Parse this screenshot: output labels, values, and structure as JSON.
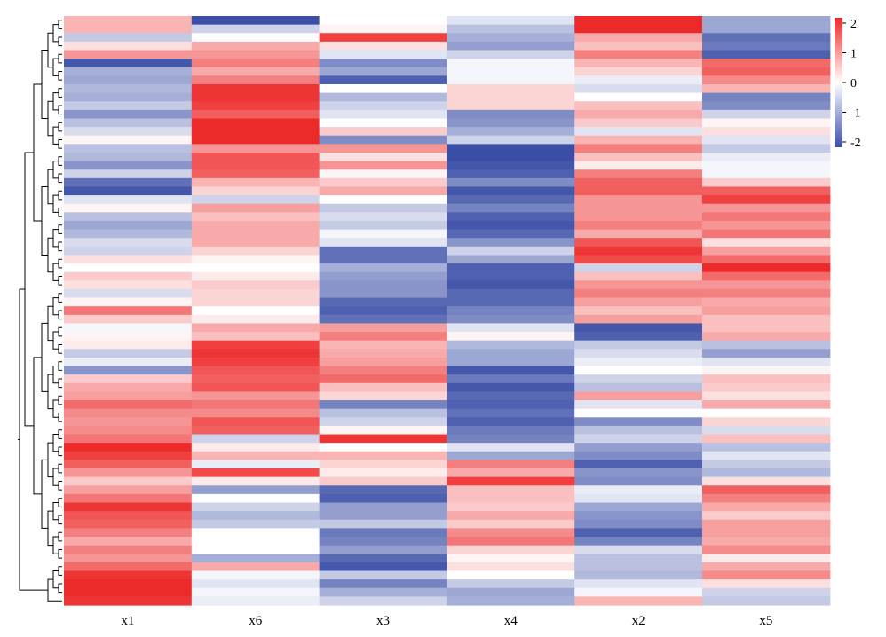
{
  "chart_data": {
    "type": "heatmap",
    "columns": [
      "x1",
      "x6",
      "x3",
      "x4",
      "x2",
      "x5"
    ],
    "legend": {
      "min": -2,
      "max": 2,
      "ticks": [
        "2",
        "1",
        "0",
        "-1",
        "-2"
      ],
      "colors": {
        "low": "#3a4ea6",
        "mid": "#ffffff",
        "high": "#ed2a2a"
      }
    },
    "dendrogram": "hierarchical clustering of rows shown on left",
    "rows": [
      [
        0.7,
        -2.0,
        0.0,
        -0.3,
        2.0,
        -1.0
      ],
      [
        0.7,
        -0.5,
        0.1,
        -0.7,
        2.0,
        -1.0
      ],
      [
        -0.6,
        0.0,
        1.8,
        -0.9,
        0.8,
        -1.6
      ],
      [
        0.3,
        0.8,
        0.3,
        -1.1,
        0.6,
        -1.5
      ],
      [
        1.0,
        1.0,
        -0.3,
        -0.5,
        1.2,
        -1.8
      ],
      [
        -1.9,
        1.2,
        -1.3,
        -0.1,
        0.7,
        1.4
      ],
      [
        -0.9,
        0.8,
        -1.0,
        -0.1,
        0.4,
        1.5
      ],
      [
        -1.0,
        1.2,
        -1.8,
        -0.1,
        -0.2,
        1.1
      ],
      [
        -0.8,
        1.9,
        0.0,
        0.4,
        -0.4,
        0.7
      ],
      [
        -0.9,
        1.9,
        -0.8,
        0.4,
        0.0,
        -1.4
      ],
      [
        -0.6,
        1.8,
        -0.5,
        0.4,
        0.6,
        -1.3
      ],
      [
        -1.2,
        1.5,
        -0.3,
        -1.3,
        0.8,
        -0.5
      ],
      [
        -0.7,
        2.0,
        0.0,
        -1.2,
        0.5,
        0.1
      ],
      [
        -0.4,
        2.0,
        0.5,
        -0.9,
        -0.3,
        0.3
      ],
      [
        0.1,
        2.0,
        -1.3,
        -0.5,
        0.7,
        -0.3
      ],
      [
        -0.7,
        1.0,
        1.0,
        -2.0,
        1.2,
        -0.6
      ],
      [
        -0.8,
        1.6,
        0.3,
        -2.0,
        0.6,
        -0.2
      ],
      [
        -1.2,
        1.6,
        1.0,
        -1.9,
        0.2,
        -0.1
      ],
      [
        -0.5,
        1.5,
        0.1,
        -1.8,
        1.2,
        -0.1
      ],
      [
        -1.6,
        0.7,
        0.5,
        -1.3,
        1.5,
        0.5
      ],
      [
        -1.9,
        0.4,
        0.8,
        -1.9,
        1.5,
        1.5
      ],
      [
        -0.3,
        -0.5,
        0.0,
        -1.7,
        1.0,
        1.8
      ],
      [
        0.1,
        0.9,
        -0.6,
        -1.4,
        1.0,
        1.0
      ],
      [
        -0.7,
        0.6,
        -0.4,
        -1.8,
        1.0,
        1.3
      ],
      [
        -1.0,
        0.8,
        -0.6,
        -1.9,
        1.2,
        1.0
      ],
      [
        -0.8,
        0.8,
        -0.1,
        -1.7,
        0.8,
        1.3
      ],
      [
        -0.4,
        0.8,
        -0.3,
        -1.2,
        1.6,
        0.3
      ],
      [
        -0.5,
        0.4,
        -1.6,
        -0.5,
        1.9,
        0.9
      ],
      [
        0.3,
        0.1,
        -1.6,
        -1.0,
        1.7,
        1.4
      ],
      [
        0.0,
        0.0,
        -0.9,
        -1.8,
        -0.5,
        2.0
      ],
      [
        0.5,
        0.2,
        -1.1,
        -1.8,
        0.6,
        1.4
      ],
      [
        0.3,
        0.5,
        -1.2,
        -1.9,
        1.0,
        1.0
      ],
      [
        -0.4,
        0.4,
        -1.2,
        -1.7,
        1.2,
        1.2
      ],
      [
        0.1,
        0.4,
        -1.7,
        -1.7,
        0.9,
        0.8
      ],
      [
        1.3,
        0.0,
        -1.8,
        -1.4,
        0.6,
        0.9
      ],
      [
        0.5,
        0.2,
        -1.6,
        -1.3,
        0.9,
        0.6
      ],
      [
        -0.1,
        0.8,
        0.9,
        -0.3,
        -1.9,
        0.6
      ],
      [
        0.1,
        0.6,
        1.2,
        0.1,
        -1.8,
        0.8
      ],
      [
        0.2,
        1.8,
        0.7,
        -0.8,
        -0.6,
        -0.7
      ],
      [
        -0.6,
        1.9,
        0.8,
        -1.0,
        -0.4,
        -1.1
      ],
      [
        -0.2,
        1.8,
        0.9,
        -1.0,
        -0.2,
        -0.3
      ],
      [
        -1.2,
        1.6,
        1.2,
        -1.9,
        0.0,
        0.1
      ],
      [
        0.5,
        1.5,
        1.4,
        -1.5,
        -0.5,
        0.6
      ],
      [
        0.8,
        1.6,
        0.6,
        -1.9,
        -0.7,
        0.5
      ],
      [
        0.9,
        1.0,
        0.4,
        -1.7,
        0.9,
        0.3
      ],
      [
        1.4,
        1.3,
        -1.4,
        -1.8,
        -0.3,
        0.8
      ],
      [
        1.1,
        1.1,
        -0.7,
        -1.6,
        0.0,
        0.0
      ],
      [
        1.0,
        1.6,
        -0.5,
        -1.8,
        -1.3,
        0.4
      ],
      [
        1.1,
        1.5,
        0.1,
        -1.5,
        -0.7,
        -0.4
      ],
      [
        1.3,
        -0.5,
        1.9,
        -1.4,
        -0.5,
        0.6
      ],
      [
        2.0,
        0.2,
        0.0,
        -0.3,
        -1.1,
        -0.7
      ],
      [
        1.8,
        0.7,
        0.7,
        -1.0,
        -1.3,
        -0.3
      ],
      [
        1.5,
        -0.2,
        0.4,
        1.2,
        -1.8,
        -0.6
      ],
      [
        1.0,
        1.7,
        0.2,
        0.8,
        -1.2,
        -0.8
      ],
      [
        0.5,
        0.2,
        0.5,
        1.8,
        -1.3,
        0.3
      ],
      [
        0.9,
        -1.1,
        -1.7,
        0.6,
        -0.2,
        1.5
      ],
      [
        1.3,
        0.0,
        -1.8,
        0.6,
        -0.3,
        1.2
      ],
      [
        1.9,
        -0.5,
        -1.1,
        0.5,
        -1.0,
        0.8
      ],
      [
        1.6,
        -0.8,
        -1.1,
        0.8,
        -1.2,
        0.5
      ],
      [
        1.5,
        -0.6,
        -0.6,
        0.5,
        -1.3,
        0.9
      ],
      [
        1.2,
        0.0,
        -1.5,
        1.1,
        -1.8,
        0.9
      ],
      [
        0.8,
        0.0,
        -1.4,
        1.3,
        -1.4,
        0.8
      ],
      [
        1.2,
        0.0,
        -1.1,
        0.4,
        -0.4,
        1.1
      ],
      [
        1.0,
        -0.9,
        -1.7,
        0.1,
        -0.7,
        0.2
      ],
      [
        1.4,
        0.8,
        -1.9,
        0.3,
        -0.7,
        0.8
      ],
      [
        1.9,
        -0.1,
        -0.6,
        0.0,
        -0.8,
        1.1
      ],
      [
        2.0,
        -0.3,
        -1.4,
        -0.6,
        -0.3,
        0.3
      ],
      [
        2.0,
        -0.1,
        -0.9,
        -1.0,
        -0.1,
        -0.5
      ],
      [
        1.9,
        -0.2,
        -0.5,
        -0.9,
        0.7,
        -0.6
      ]
    ]
  }
}
